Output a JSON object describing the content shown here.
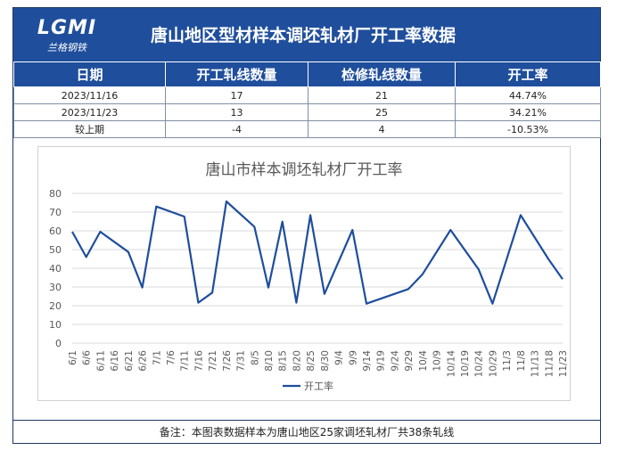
{
  "header": {
    "logo": "LGMI",
    "logo_sub": "兰格钢铁",
    "title": "唐山地区型材样本调坯轧材厂开工率数据"
  },
  "table": {
    "columns": [
      "日期",
      "开工轧线数量",
      "检修轧线数量",
      "开工率"
    ],
    "rows": [
      [
        "2023/11/16",
        "17",
        "21",
        "44.74%"
      ],
      [
        "2023/11/23",
        "13",
        "25",
        "34.21%"
      ],
      [
        "较上期",
        "-4",
        "4",
        "-10.53%"
      ]
    ]
  },
  "chart_data": {
    "type": "line",
    "title": "唐山市样本调坯轧材厂开工率",
    "xlabel": "",
    "ylabel": "",
    "ylim": [
      0,
      80
    ],
    "yticks": [
      0,
      10,
      20,
      30,
      40,
      50,
      60,
      70,
      80
    ],
    "grid": true,
    "legend": "bottom",
    "color": "#1f4e9c",
    "categories": [
      "6/1",
      "6/6",
      "6/11",
      "6/16",
      "6/21",
      "6/26",
      "7/1",
      "7/6",
      "7/11",
      "7/16",
      "7/21",
      "7/26",
      "7/31",
      "8/5",
      "8/10",
      "8/15",
      "8/20",
      "8/25",
      "8/30",
      "9/4",
      "9/9",
      "9/14",
      "9/19",
      "9/24",
      "9/29",
      "10/4",
      "10/9",
      "10/14",
      "10/19",
      "10/24",
      "10/29",
      "11/3",
      "11/8",
      "11/13",
      "11/18",
      "11/23"
    ],
    "series": [
      {
        "name": "开工率",
        "points": [
          [
            "6/1",
            59.5
          ],
          [
            "6/6",
            46.0
          ],
          [
            "6/11",
            59.5
          ],
          [
            "6/21",
            48.7
          ],
          [
            "6/26",
            29.7
          ],
          [
            "7/1",
            73.0
          ],
          [
            "7/11",
            67.6
          ],
          [
            "7/16",
            21.6
          ],
          [
            "7/21",
            27.0
          ],
          [
            "7/26",
            75.7
          ],
          [
            "8/5",
            62.2
          ],
          [
            "8/10",
            29.7
          ],
          [
            "8/15",
            64.9
          ],
          [
            "8/20",
            21.6
          ],
          [
            "8/25",
            68.4
          ],
          [
            "8/30",
            26.3
          ],
          [
            "9/9",
            60.5
          ],
          [
            "9/14",
            21.1
          ],
          [
            "9/29",
            28.9
          ],
          [
            "10/4",
            36.8
          ],
          [
            "10/14",
            60.5
          ],
          [
            "10/24",
            39.5
          ],
          [
            "10/29",
            21.1
          ],
          [
            "11/8",
            68.4
          ],
          [
            "11/18",
            44.74
          ],
          [
            "11/23",
            34.21
          ]
        ]
      }
    ]
  },
  "note": "备注：本图表数据样本为唐山地区25家调坯轧材厂共38条轧线"
}
